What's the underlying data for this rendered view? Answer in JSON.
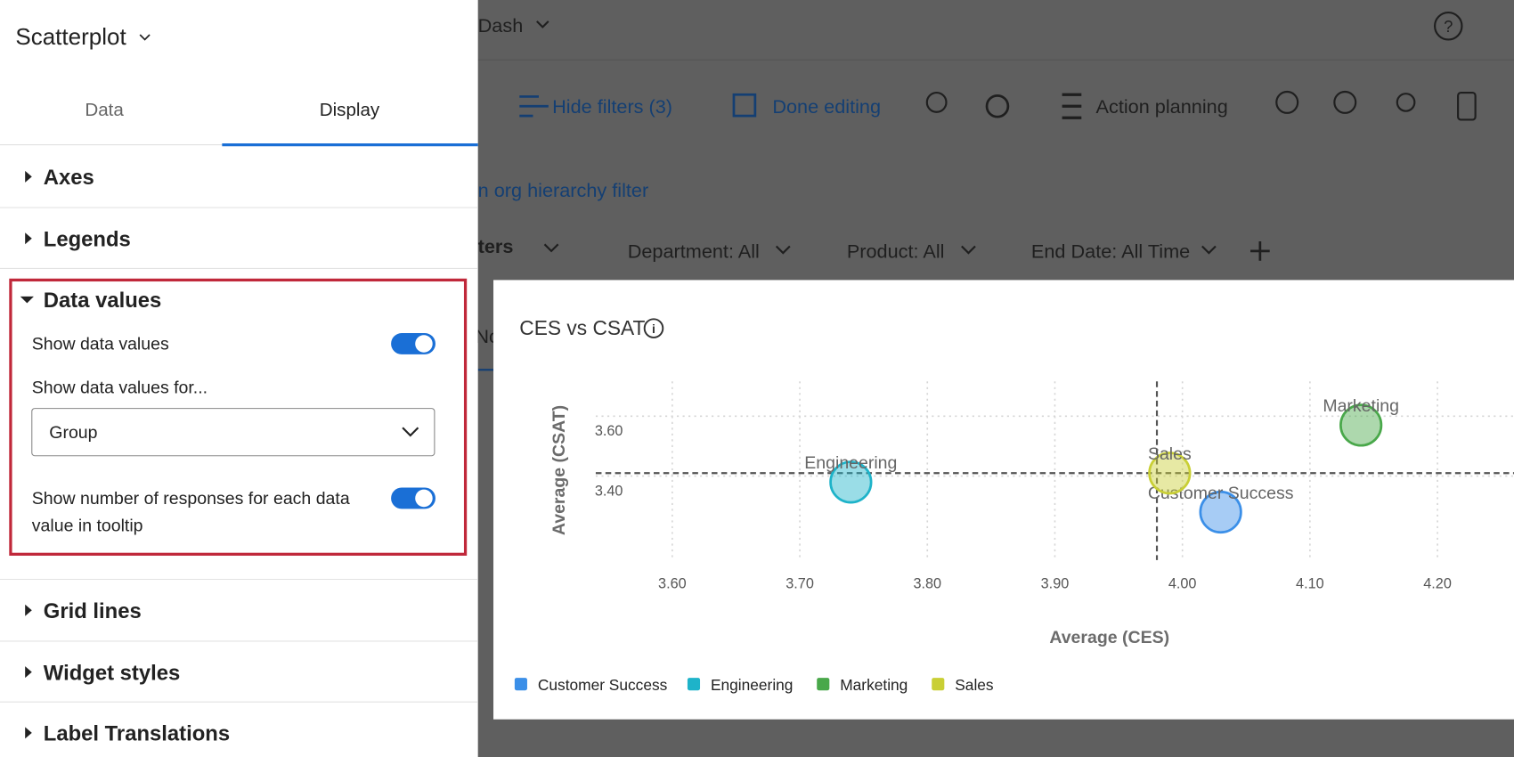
{
  "panel": {
    "title": "Scatterplot",
    "tabs": [
      "Data",
      "Display"
    ],
    "sections": [
      "Axes",
      "Legends",
      "Data values",
      "Grid lines",
      "Widget styles",
      "Label Translations"
    ],
    "data_values": {
      "options": [
        {
          "label": "Show data values",
          "enabled": true
        },
        {
          "label": "Show number of responses for each data value in tooltip",
          "enabled": true
        }
      ],
      "dropdown_label": "Show data values for...",
      "dropdown_value": "Group"
    }
  },
  "dashboard": {
    "name": "Dash",
    "toolbar": [
      "Hide filters (3)",
      "Done editing",
      "Action planning"
    ],
    "link": "n org hierarchy filter",
    "filters_label": "ters",
    "filters": [
      "Department: All",
      "Product: All",
      "End Date: All Time"
    ],
    "partial_text": "No"
  },
  "chart_data": {
    "type": "scatter",
    "title": "CES vs CSAT",
    "x_label": "Average (CES)",
    "y_label": "Average (CSAT)",
    "series": [
      {
        "name": "Customer Success",
        "color": "#3b8fe8",
        "x": [
          4.03
        ],
        "values": [
          3.28
        ]
      },
      {
        "name": "Engineering",
        "color": "#1eb3c9",
        "x": [
          3.74
        ],
        "values": [
          3.38
        ]
      },
      {
        "name": "Marketing",
        "color": "#49a84a",
        "x": [
          4.14
        ],
        "values": [
          3.57
        ]
      },
      {
        "name": "Sales",
        "color": "#c9cf35",
        "x": [
          3.99
        ],
        "values": [
          3.41
        ]
      }
    ],
    "xlim": [
      3.54,
      4.26
    ],
    "ylim": [
      3.12,
      3.7
    ],
    "xticks": [
      {
        "value": 3.6,
        "label": "3.60"
      },
      {
        "value": 3.7,
        "label": "3.70"
      },
      {
        "value": 3.8,
        "label": "3.80"
      },
      {
        "value": 3.9,
        "label": "3.90"
      },
      {
        "value": 4.0,
        "label": "4.00"
      },
      {
        "value": 4.1,
        "label": "4.10"
      },
      {
        "value": 4.2,
        "label": "4.20"
      }
    ],
    "yticks": [
      {
        "value": 3.6,
        "label": "3.60"
      },
      {
        "value": 3.4,
        "label": "3.40"
      }
    ],
    "x_reference": 3.98,
    "y_reference": 3.41,
    "grid": true
  }
}
